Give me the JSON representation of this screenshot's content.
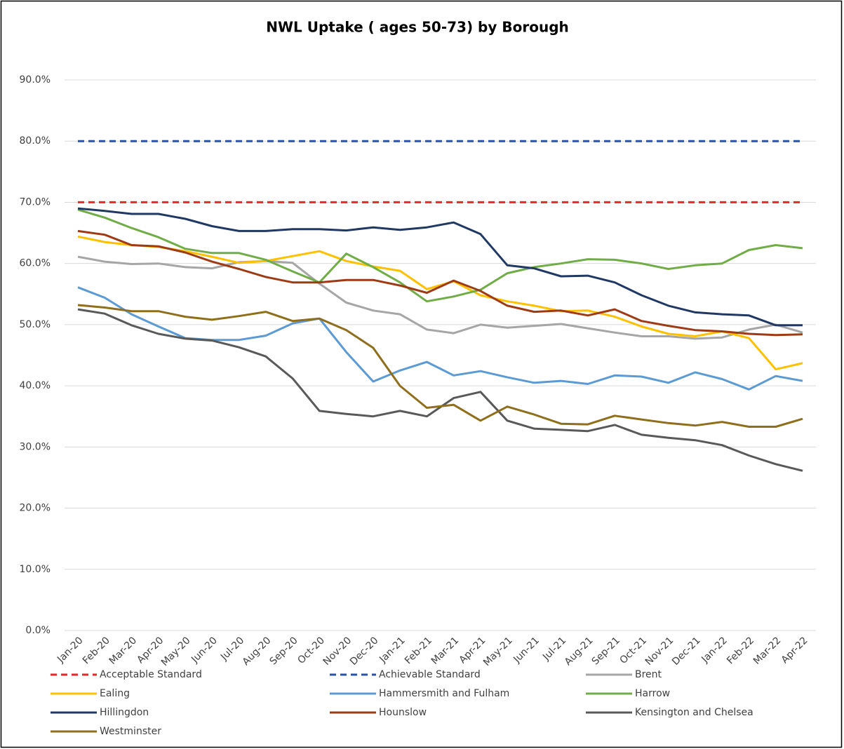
{
  "chart_data": {
    "type": "line",
    "title": "NWL Uptake ( ages 50-73) by Borough",
    "categories": [
      "Jan-20",
      "Feb-20",
      "Mar-20",
      "Apr-20",
      "May-20",
      "Jun-20",
      "Jul-20",
      "Aug-20",
      "Sep-20",
      "Oct-20",
      "Nov-20",
      "Dec-20",
      "Jan-21",
      "Feb-21",
      "Mar-21",
      "Apr-21",
      "May-21",
      "Jun-21",
      "Jul-21",
      "Aug-21",
      "Sep-21",
      "Oct-21",
      "Nov-21",
      "Dec-21",
      "Jan-22",
      "Feb-22",
      "Mar-22",
      "Apr-22"
    ],
    "ylim": [
      0,
      90
    ],
    "yticks": [
      {
        "value": 0,
        "label": "0.0%"
      },
      {
        "value": 10,
        "label": "10.0%"
      },
      {
        "value": 20,
        "label": "20.0%"
      },
      {
        "value": 30,
        "label": "30.0%"
      },
      {
        "value": 40,
        "label": "40.0%"
      },
      {
        "value": 50,
        "label": "50.0%"
      },
      {
        "value": 60,
        "label": "60.0%"
      },
      {
        "value": 70,
        "label": "70.0%"
      },
      {
        "value": 80,
        "label": "80.0%"
      },
      {
        "value": 90,
        "label": "90.0%"
      }
    ],
    "grid": true,
    "legend": "bottom",
    "series": [
      {
        "name": "Acceptable Standard",
        "color": "#e8272a",
        "dash": true,
        "values": [
          70,
          70,
          70,
          70,
          70,
          70,
          70,
          70,
          70,
          70,
          70,
          70,
          70,
          70,
          70,
          70,
          70,
          70,
          70,
          70,
          70,
          70,
          70,
          70,
          70,
          70,
          70,
          70
        ]
      },
      {
        "name": "Achievable Standard",
        "color": "#2a52a8",
        "dash": true,
        "values": [
          80,
          80,
          80,
          80,
          80,
          80,
          80,
          80,
          80,
          80,
          80,
          80,
          80,
          80,
          80,
          80,
          80,
          80,
          80,
          80,
          80,
          80,
          80,
          80,
          80,
          80,
          80,
          80
        ]
      },
      {
        "name": "Brent",
        "color": "#a6a6a6",
        "values": [
          61.1,
          60.3,
          59.9,
          60.0,
          59.4,
          59.2,
          60.2,
          60.4,
          60.1,
          56.7,
          53.6,
          52.3,
          51.7,
          49.2,
          48.6,
          50.0,
          49.5,
          49.8,
          50.1,
          49.4,
          48.7,
          48.1,
          48.1,
          47.7,
          47.9,
          49.2,
          50.0,
          48.7
        ]
      },
      {
        "name": "Ealing",
        "color": "#ffc000",
        "values": [
          64.4,
          63.5,
          63.0,
          62.7,
          62.0,
          61.1,
          60.1,
          60.4,
          61.2,
          62.0,
          60.4,
          59.5,
          58.8,
          55.8,
          57.1,
          54.8,
          53.8,
          53.1,
          52.2,
          52.3,
          51.3,
          49.7,
          48.5,
          48.1,
          48.9,
          47.8,
          42.7,
          43.7
        ]
      },
      {
        "name": "Hammersmith and Fulham",
        "color": "#5b9bd5",
        "values": [
          56.1,
          54.4,
          51.7,
          49.7,
          47.8,
          47.5,
          47.5,
          48.2,
          50.2,
          51.0,
          45.5,
          40.7,
          42.5,
          43.9,
          41.7,
          42.4,
          41.4,
          40.5,
          40.8,
          40.3,
          41.7,
          41.5,
          40.5,
          42.2,
          41.1,
          39.4,
          41.6,
          40.8
        ]
      },
      {
        "name": "Harrow",
        "color": "#70ad47",
        "values": [
          68.8,
          67.5,
          65.8,
          64.3,
          62.4,
          61.7,
          61.7,
          60.6,
          58.7,
          56.9,
          61.6,
          59.4,
          56.9,
          53.8,
          54.6,
          55.7,
          58.4,
          59.4,
          60.0,
          60.7,
          60.6,
          60.0,
          59.1,
          59.7,
          60.0,
          62.2,
          63.0,
          62.5
        ]
      },
      {
        "name": "Hillingdon",
        "color": "#1f3864",
        "values": [
          69.0,
          68.6,
          68.1,
          68.1,
          67.3,
          66.1,
          65.3,
          65.3,
          65.6,
          65.6,
          65.4,
          65.9,
          65.5,
          65.9,
          66.7,
          64.8,
          59.7,
          59.2,
          57.9,
          58.0,
          56.9,
          54.8,
          53.1,
          52.0,
          51.7,
          51.5,
          49.9,
          49.9
        ]
      },
      {
        "name": "Hounslow",
        "color": "#9e3a14",
        "values": [
          65.3,
          64.7,
          63.0,
          62.8,
          61.8,
          60.3,
          59.1,
          57.8,
          56.9,
          56.9,
          57.3,
          57.3,
          56.4,
          55.2,
          57.2,
          55.5,
          53.1,
          52.1,
          52.3,
          51.5,
          52.5,
          50.6,
          49.8,
          49.1,
          48.9,
          48.5,
          48.3,
          48.4
        ]
      },
      {
        "name": "Kensington and Chelsea",
        "color": "#595959",
        "values": [
          52.5,
          51.8,
          49.9,
          48.5,
          47.7,
          47.4,
          46.3,
          44.8,
          41.2,
          35.9,
          35.4,
          35.0,
          35.9,
          35.0,
          38.0,
          39.0,
          34.3,
          33.0,
          32.8,
          32.6,
          33.6,
          32.0,
          31.5,
          31.1,
          30.3,
          28.6,
          27.2,
          26.1
        ]
      },
      {
        "name": "Westminster",
        "color": "#8f6e1c",
        "values": [
          53.2,
          52.8,
          52.2,
          52.2,
          51.3,
          50.8,
          51.4,
          52.1,
          50.6,
          51.0,
          49.1,
          46.2,
          40.0,
          36.4,
          36.9,
          34.3,
          36.6,
          35.3,
          33.8,
          33.7,
          35.1,
          34.5,
          33.9,
          33.5,
          34.1,
          33.3,
          33.3,
          34.6
        ]
      }
    ]
  }
}
